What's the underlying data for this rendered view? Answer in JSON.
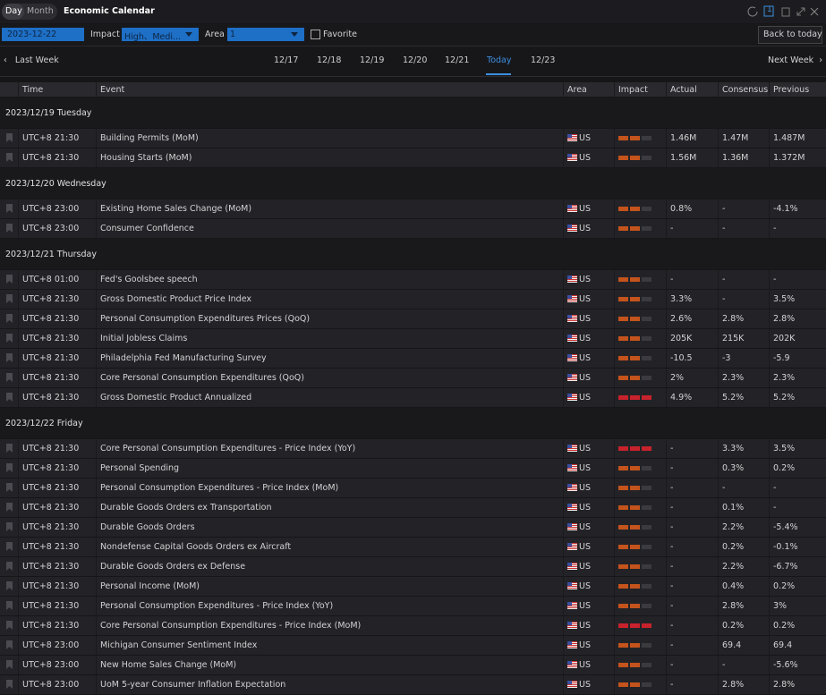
{
  "header": {
    "tabs": [
      "Day",
      "Month"
    ],
    "title": "Economic Calendar",
    "window_badge": "1"
  },
  "filters": {
    "date": "2023-12-22",
    "impact_label": "Impact",
    "impact_value": "High、Medi...",
    "area_label": "Area",
    "area_value": "1",
    "favorite": "Favorite",
    "back": "Back to today"
  },
  "nav": {
    "prev": "Last Week",
    "next": "Next Week",
    "days": [
      "12/17",
      "12/18",
      "12/19",
      "12/20",
      "12/21",
      "Today",
      "12/23"
    ]
  },
  "table": {
    "columns": [
      "Time",
      "Event",
      "Area",
      "Impact",
      "Actual",
      "Consensus",
      "Previous"
    ],
    "groups": [
      {
        "date": "2023/12/19 Tuesday",
        "rows": [
          {
            "time": "UTC+8 21:30",
            "event": "Building Permits (MoM)",
            "area": "US",
            "impact": 2,
            "actual": "1.46M",
            "consensus": "1.47M",
            "previous": "1.487M"
          },
          {
            "time": "UTC+8 21:30",
            "event": "Housing Starts (MoM)",
            "area": "US",
            "impact": 2,
            "actual": "1.56M",
            "consensus": "1.36M",
            "previous": "1.372M"
          }
        ]
      },
      {
        "date": "2023/12/20 Wednesday",
        "rows": [
          {
            "time": "UTC+8 23:00",
            "event": "Existing Home Sales Change (MoM)",
            "area": "US",
            "impact": 2,
            "actual": "0.8%",
            "consensus": "-",
            "previous": "-4.1%"
          },
          {
            "time": "UTC+8 23:00",
            "event": "Consumer Confidence",
            "area": "US",
            "impact": 2,
            "actual": "-",
            "consensus": "-",
            "previous": "-"
          }
        ]
      },
      {
        "date": "2023/12/21 Thursday",
        "rows": [
          {
            "time": "UTC+8 01:00",
            "event": "Fed's Goolsbee speech",
            "area": "US",
            "impact": 2,
            "actual": "-",
            "consensus": "-",
            "previous": "-"
          },
          {
            "time": "UTC+8 21:30",
            "event": "Gross Domestic Product Price Index",
            "area": "US",
            "impact": 2,
            "actual": "3.3%",
            "consensus": "-",
            "previous": "3.5%"
          },
          {
            "time": "UTC+8 21:30",
            "event": "Personal Consumption Expenditures Prices (QoQ)",
            "area": "US",
            "impact": 2,
            "actual": "2.6%",
            "consensus": "2.8%",
            "previous": "2.8%"
          },
          {
            "time": "UTC+8 21:30",
            "event": "Initial Jobless Claims",
            "area": "US",
            "impact": 2,
            "actual": "205K",
            "consensus": "215K",
            "previous": "202K"
          },
          {
            "time": "UTC+8 21:30",
            "event": "Philadelphia Fed Manufacturing Survey",
            "area": "US",
            "impact": 2,
            "actual": "-10.5",
            "consensus": "-3",
            "previous": "-5.9"
          },
          {
            "time": "UTC+8 21:30",
            "event": "Core Personal Consumption Expenditures (QoQ)",
            "area": "US",
            "impact": 2,
            "actual": "2%",
            "consensus": "2.3%",
            "previous": "2.3%"
          },
          {
            "time": "UTC+8 21:30",
            "event": "Gross Domestic Product Annualized",
            "area": "US",
            "impact": 3,
            "actual": "4.9%",
            "consensus": "5.2%",
            "previous": "5.2%"
          }
        ]
      },
      {
        "date": "2023/12/22 Friday",
        "rows": [
          {
            "time": "UTC+8 21:30",
            "event": "Core Personal Consumption Expenditures - Price Index (YoY)",
            "area": "US",
            "impact": 3,
            "actual": "-",
            "consensus": "3.3%",
            "previous": "3.5%"
          },
          {
            "time": "UTC+8 21:30",
            "event": "Personal Spending",
            "area": "US",
            "impact": 2,
            "actual": "-",
            "consensus": "0.3%",
            "previous": "0.2%"
          },
          {
            "time": "UTC+8 21:30",
            "event": "Personal Consumption Expenditures - Price Index (MoM)",
            "area": "US",
            "impact": 2,
            "actual": "-",
            "consensus": "-",
            "previous": "-"
          },
          {
            "time": "UTC+8 21:30",
            "event": "Durable Goods Orders ex Transportation",
            "area": "US",
            "impact": 2,
            "actual": "-",
            "consensus": "0.1%",
            "previous": "-"
          },
          {
            "time": "UTC+8 21:30",
            "event": "Durable Goods Orders",
            "area": "US",
            "impact": 2,
            "actual": "-",
            "consensus": "2.2%",
            "previous": "-5.4%"
          },
          {
            "time": "UTC+8 21:30",
            "event": "Nondefense Capital Goods Orders ex Aircraft",
            "area": "US",
            "impact": 2,
            "actual": "-",
            "consensus": "0.2%",
            "previous": "-0.1%"
          },
          {
            "time": "UTC+8 21:30",
            "event": "Durable Goods Orders ex Defense",
            "area": "US",
            "impact": 2,
            "actual": "-",
            "consensus": "2.2%",
            "previous": "-6.7%"
          },
          {
            "time": "UTC+8 21:30",
            "event": "Personal Income (MoM)",
            "area": "US",
            "impact": 2,
            "actual": "-",
            "consensus": "0.4%",
            "previous": "0.2%"
          },
          {
            "time": "UTC+8 21:30",
            "event": "Personal Consumption Expenditures - Price Index (YoY)",
            "area": "US",
            "impact": 2,
            "actual": "-",
            "consensus": "2.8%",
            "previous": "3%"
          },
          {
            "time": "UTC+8 21:30",
            "event": "Core Personal Consumption Expenditures - Price Index (MoM)",
            "area": "US",
            "impact": 3,
            "actual": "-",
            "consensus": "0.2%",
            "previous": "0.2%"
          },
          {
            "time": "UTC+8 23:00",
            "event": "Michigan Consumer Sentiment Index",
            "area": "US",
            "impact": 2,
            "actual": "-",
            "consensus": "69.4",
            "previous": "69.4"
          },
          {
            "time": "UTC+8 23:00",
            "event": "New Home Sales Change (MoM)",
            "area": "US",
            "impact": 2,
            "actual": "-",
            "consensus": "-",
            "previous": "-5.6%"
          },
          {
            "time": "UTC+8 23:00",
            "event": "UoM 5-year Consumer Inflation Expectation",
            "area": "US",
            "impact": 2,
            "actual": "-",
            "consensus": "2.8%",
            "previous": "2.8%"
          }
        ]
      }
    ]
  }
}
